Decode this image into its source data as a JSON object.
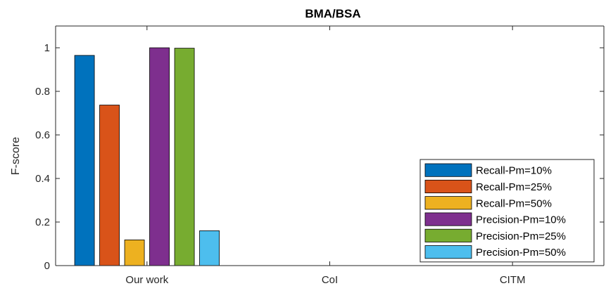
{
  "chart_data": {
    "type": "bar",
    "title": "BMA/BSA",
    "xlabel": "",
    "ylabel": "F-score",
    "categories": [
      "Our work",
      "CoI",
      "CITM"
    ],
    "ylim": [
      0,
      1.1
    ],
    "yticks": [
      0,
      0.2,
      0.4,
      0.6,
      0.8,
      1
    ],
    "ytick_labels": [
      "0",
      "0.2",
      "0.4",
      "0.6",
      "0.8",
      "1"
    ],
    "grid": false,
    "legend_position": "bottom-right",
    "series": [
      {
        "name": "Recall-Pm=10%",
        "color": "#0072BD",
        "values": [
          0.965,
          0,
          0
        ]
      },
      {
        "name": "Recall-Pm=25%",
        "color": "#D95319",
        "values": [
          0.737,
          0,
          0
        ]
      },
      {
        "name": "Recall-Pm=50%",
        "color": "#EDB120",
        "values": [
          0.118,
          0,
          0
        ]
      },
      {
        "name": "Precision-Pm=10%",
        "color": "#7E2F8E",
        "values": [
          1.0,
          0,
          0
        ]
      },
      {
        "name": "Precision-Pm=25%",
        "color": "#77AC30",
        "values": [
          0.998,
          0,
          0
        ]
      },
      {
        "name": "Precision-Pm=50%",
        "color": "#4DBEEE",
        "values": [
          0.16,
          0,
          0
        ]
      }
    ]
  }
}
